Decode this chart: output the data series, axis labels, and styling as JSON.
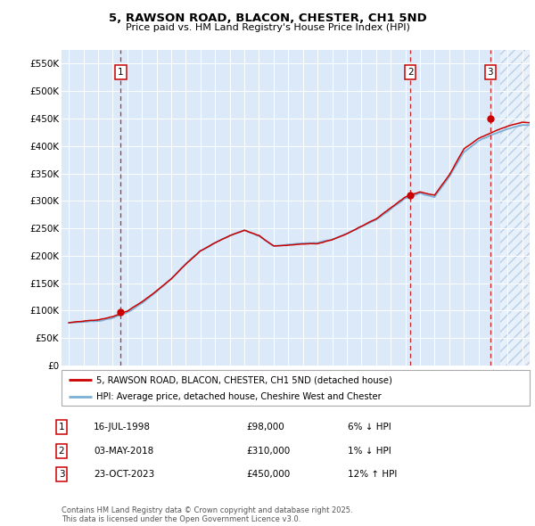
{
  "title": "5, RAWSON ROAD, BLACON, CHESTER, CH1 5ND",
  "subtitle": "Price paid vs. HM Land Registry's House Price Index (HPI)",
  "ylabel_values": [
    "£0",
    "£50K",
    "£100K",
    "£150K",
    "£200K",
    "£250K",
    "£300K",
    "£350K",
    "£400K",
    "£450K",
    "£500K",
    "£550K"
  ],
  "yticks": [
    0,
    50000,
    100000,
    150000,
    200000,
    250000,
    300000,
    350000,
    400000,
    450000,
    500000,
    550000
  ],
  "xlim_start": 1994.5,
  "xlim_end": 2026.5,
  "ylim_min": 0,
  "ylim_max": 575000,
  "bg_color": "#dce9f8",
  "hatch_color": "#b8cfe8",
  "legend_label_red": "5, RAWSON ROAD, BLACON, CHESTER, CH1 5ND (detached house)",
  "legend_label_blue": "HPI: Average price, detached house, Cheshire West and Chester",
  "sale_dates": [
    1998.54,
    2018.34,
    2023.81
  ],
  "sale_prices": [
    98000,
    310000,
    450000
  ],
  "sale_labels": [
    "1",
    "2",
    "3"
  ],
  "footer": "Contains HM Land Registry data © Crown copyright and database right 2025.\nThis data is licensed under the Open Government Licence v3.0.",
  "red_line_color": "#cc0000",
  "blue_line_color": "#7bafd4",
  "vline_color": "#cc0000",
  "box_color": "#cc0000",
  "ann_dates": [
    "16-JUL-1998",
    "03-MAY-2018",
    "23-OCT-2023"
  ],
  "ann_prices": [
    "£98,000",
    "£310,000",
    "£450,000"
  ],
  "ann_hpi": [
    "6% ↓ HPI",
    "1% ↓ HPI",
    "12% ↑ HPI"
  ]
}
